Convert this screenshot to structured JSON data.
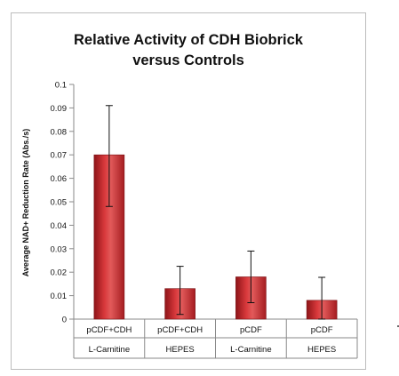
{
  "chart_data": {
    "type": "bar",
    "title": "Relative Activity of CDH   Biobrick\nversus Controls",
    "ylabel": "Average NAD+ Reduction Rate (Abs./s)",
    "xlabel": "",
    "ylim": [
      0,
      0.1
    ],
    "yticks": [
      "0",
      "0.01",
      "0.02",
      "0.03",
      "0.04",
      "0.05",
      "0.06",
      "0.07",
      "0.08",
      "0.09",
      "0.1"
    ],
    "categories": [
      {
        "line1": "pCDF+CDH",
        "line2": "L-Carnitine"
      },
      {
        "line1": "pCDF+CDH",
        "line2": "HEPES"
      },
      {
        "line1": "pCDF",
        "line2": "L-Carnitine"
      },
      {
        "line1": "pCDF",
        "line2": "HEPES"
      }
    ],
    "values": [
      0.07,
      0.013,
      0.018,
      0.008
    ],
    "error_low": [
      0.048,
      0.002,
      0.007,
      0.0
    ],
    "error_high": [
      0.091,
      0.0225,
      0.029,
      0.0178
    ],
    "bar_color": "#c0282c",
    "bar_highlight": "#e06a6a",
    "grid": false,
    "legend": "none"
  }
}
